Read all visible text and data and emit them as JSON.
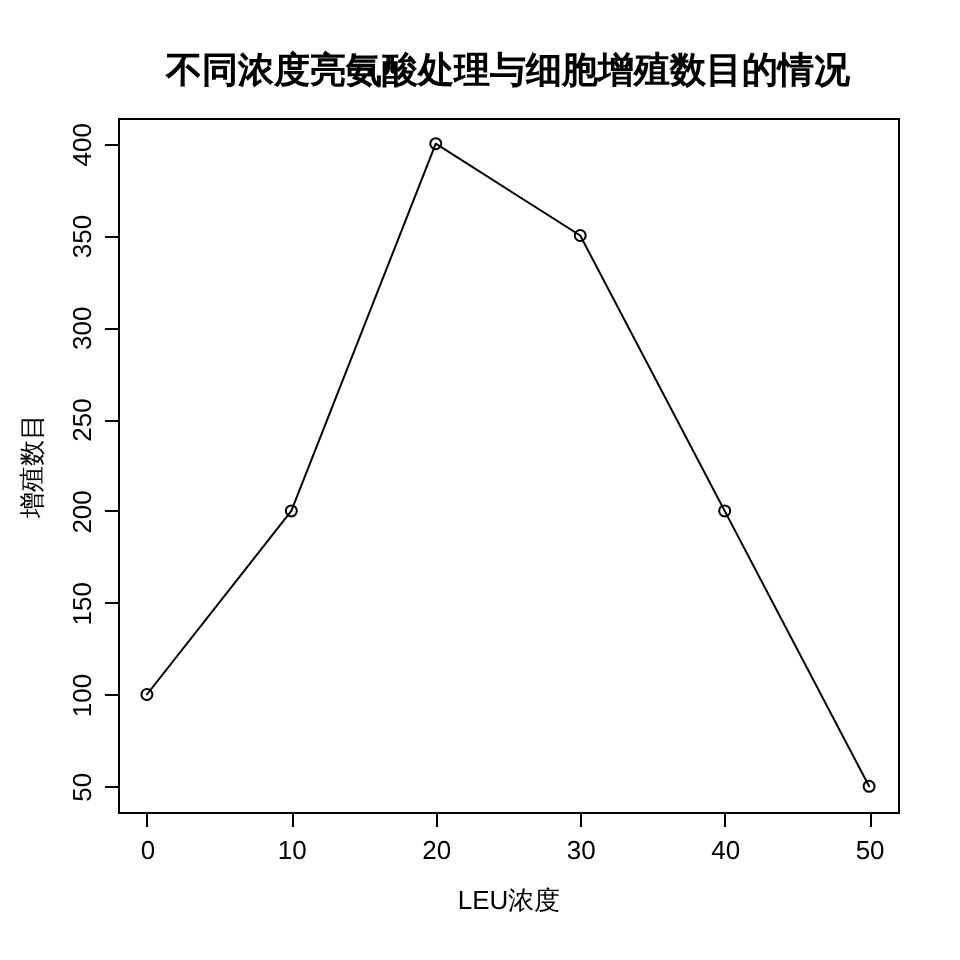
{
  "chart_data": {
    "type": "line",
    "title": "不同浓度亮氨酸处理与细胞增殖数目的情况",
    "xlabel": "LEU浓度",
    "ylabel": "增殖数目",
    "x": [
      0,
      10,
      20,
      30,
      40,
      50
    ],
    "series": [
      {
        "color": "#000000",
        "values": [
          100,
          200,
          400,
          350,
          200,
          50
        ]
      }
    ],
    "xlim": [
      -2,
      52
    ],
    "ylim": [
      36,
      414
    ],
    "xticks": [
      0,
      10,
      20,
      30,
      40,
      50
    ],
    "yticks": [
      50,
      100,
      150,
      200,
      250,
      300,
      350,
      400
    ],
    "marker": "circle",
    "line_style": "solid"
  }
}
